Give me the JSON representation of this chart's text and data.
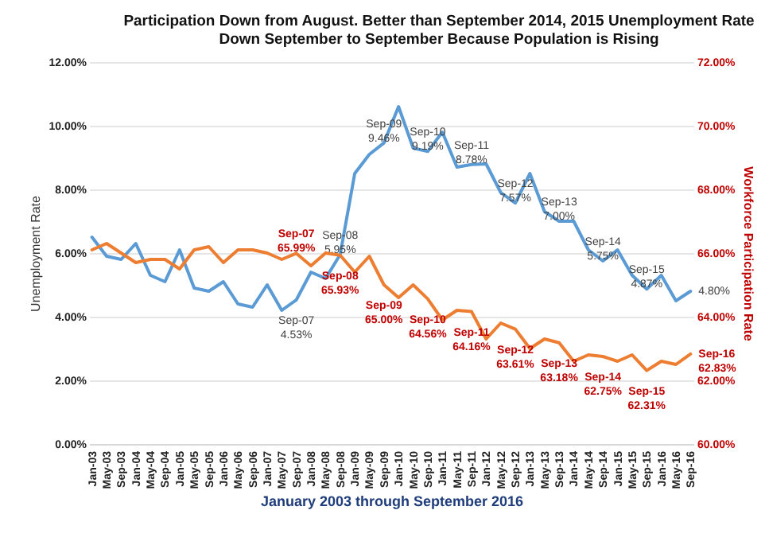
{
  "chart_data": {
    "type": "line",
    "title": "Participation Down from August. Better than September 2014, 2015 Unemployment Rate Down September to September Because Population is Rising",
    "xlabel": "January 2003 through September 2016",
    "ylabel": "Unemployment Rate",
    "y2label": "Workforce Participation Rate",
    "categories": [
      "Jan-03",
      "May-03",
      "Sep-03",
      "Jan-04",
      "May-04",
      "Sep-04",
      "Jan-05",
      "May-05",
      "Sep-05",
      "Jan-06",
      "May-06",
      "Sep-06",
      "Jan-07",
      "May-07",
      "Sep-07",
      "Jan-08",
      "May-08",
      "Sep-08",
      "Jan-09",
      "May-09",
      "Sep-09",
      "Jan-10",
      "May-10",
      "Sep-10",
      "Jan-11",
      "May-11",
      "Sep-11",
      "Jan-12",
      "May-12",
      "Sep-12",
      "Jan-13",
      "May-13",
      "Sep-13",
      "Jan-14",
      "May-14",
      "Sep-14",
      "Jan-15",
      "May-15",
      "Sep-15",
      "Jan-16",
      "May-16",
      "Sep-16"
    ],
    "series": [
      {
        "color": "#5b9bd5",
        "values": [
          6.5,
          5.9,
          5.8,
          6.3,
          5.3,
          5.1,
          6.1,
          4.9,
          4.8,
          5.1,
          4.4,
          4.3,
          5.0,
          4.2,
          4.53,
          5.4,
          5.2,
          5.95,
          8.5,
          9.1,
          9.46,
          10.6,
          9.3,
          9.19,
          9.8,
          8.7,
          8.78,
          8.8,
          7.9,
          7.57,
          8.5,
          7.3,
          7.0,
          7.0,
          6.1,
          5.75,
          6.1,
          5.3,
          4.87,
          5.3,
          4.5,
          4.8
        ],
        "value_labels": [
          null,
          null,
          null,
          null,
          null,
          null,
          null,
          null,
          null,
          null,
          null,
          null,
          null,
          null,
          "Sep-07 4.53%",
          null,
          null,
          "Sep-08 5.95%",
          null,
          null,
          "Sep-09 9.46%",
          null,
          null,
          "Sep-10 9.19%",
          null,
          null,
          "Sep-11 8.78%",
          null,
          null,
          "Sep-12 7.57%",
          null,
          null,
          "Sep-13 7.00%",
          null,
          null,
          "Sep-14 5.75%",
          null,
          null,
          "Sep-15 4.87%",
          null,
          null,
          "4.80%"
        ]
      },
      {
        "color": "#ed7d31",
        "axis": "y2",
        "values": [
          66.1,
          66.3,
          66.0,
          65.7,
          65.8,
          65.8,
          65.5,
          66.1,
          66.2,
          65.7,
          66.1,
          66.1,
          66.0,
          65.8,
          65.99,
          65.6,
          66.0,
          65.93,
          65.4,
          65.9,
          65.0,
          64.6,
          65.0,
          64.56,
          63.9,
          64.2,
          64.16,
          63.3,
          63.8,
          63.61,
          63.0,
          63.3,
          63.18,
          62.6,
          62.8,
          62.75,
          62.6,
          62.8,
          62.31,
          62.6,
          62.5,
          62.83
        ],
        "value_labels": [
          null,
          null,
          null,
          null,
          null,
          null,
          null,
          null,
          null,
          null,
          null,
          null,
          null,
          null,
          "Sep-07 65.99%",
          null,
          null,
          "Sep-08 65.93%",
          null,
          null,
          "Sep-09 65.00%",
          null,
          null,
          "Sep-10 64.56%",
          null,
          null,
          "Sep-11 64.16%",
          null,
          null,
          "Sep-12 63.61%",
          null,
          null,
          "Sep-13 63.18%",
          null,
          null,
          "Sep-14 62.75%",
          null,
          null,
          "Sep-15 62.31%",
          null,
          null,
          "Sep-16 62.83%"
        ]
      }
    ],
    "ylim": [
      0,
      12
    ],
    "yticks": [
      {
        "value": 0,
        "label": "0.00%"
      },
      {
        "value": 2,
        "label": "2.00%"
      },
      {
        "value": 4,
        "label": "4.00%"
      },
      {
        "value": 6,
        "label": "6.00%"
      },
      {
        "value": 8,
        "label": "8.00%"
      },
      {
        "value": 10,
        "label": "10.00%"
      },
      {
        "value": 12,
        "label": "12.00%"
      }
    ],
    "y2lim": [
      60,
      72
    ],
    "y2ticks": [
      {
        "value": 60,
        "label": "60.00%"
      },
      {
        "value": 62,
        "label": "62.00%"
      },
      {
        "value": 64,
        "label": "64.00%"
      },
      {
        "value": 66,
        "label": "66.00%"
      },
      {
        "value": 68,
        "label": "68.00%"
      },
      {
        "value": 70,
        "label": "70.00%"
      },
      {
        "value": 72,
        "label": "72.00%"
      }
    ],
    "grid": "y",
    "marker": "none",
    "line_style": "solid"
  }
}
